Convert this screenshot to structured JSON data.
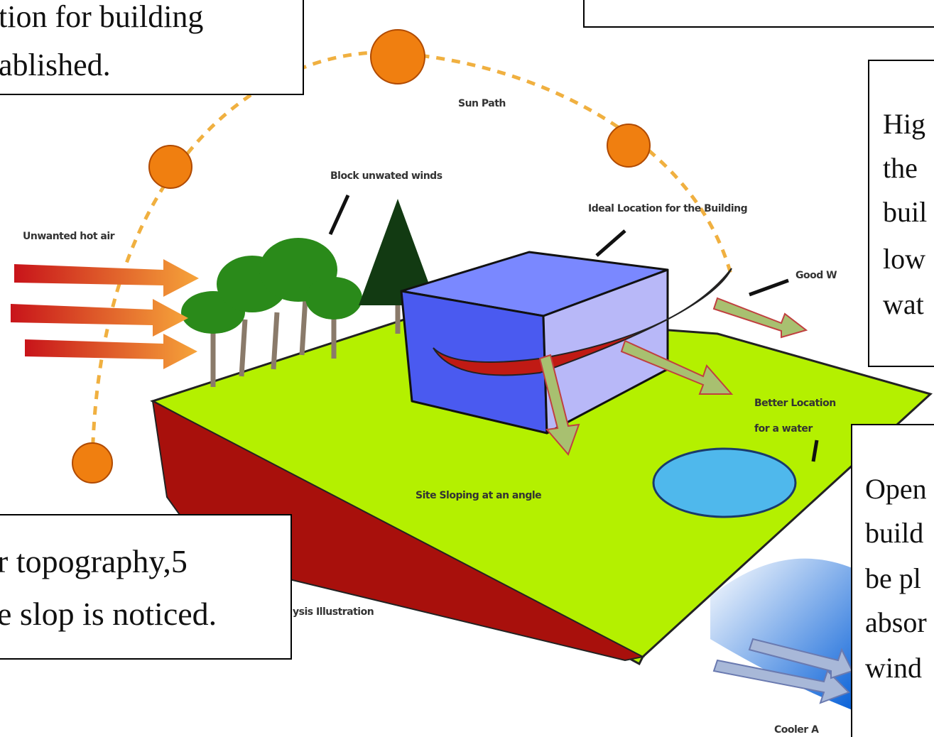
{
  "diagram": {
    "labels": [
      "Sun Path",
      "Block unwated winds",
      "Ideal Location for the Building",
      "Unwanted hot air",
      "Good W",
      "Better Location",
      "for a water",
      "Site Sloping at an angle",
      "ysis Illustration",
      "Cooler A"
    ]
  },
  "text_boxes": [
    {
      "lines": [
        "tion for building",
        "ablished."
      ]
    },
    {
      "lines": [
        "Hig",
        "the",
        "buil",
        "low",
        "wat"
      ]
    },
    {
      "lines": [
        "Open",
        "build",
        "be pl",
        "absor",
        "wind"
      ]
    },
    {
      "lines": [
        "r topography,5",
        "e slop is noticed."
      ]
    }
  ]
}
